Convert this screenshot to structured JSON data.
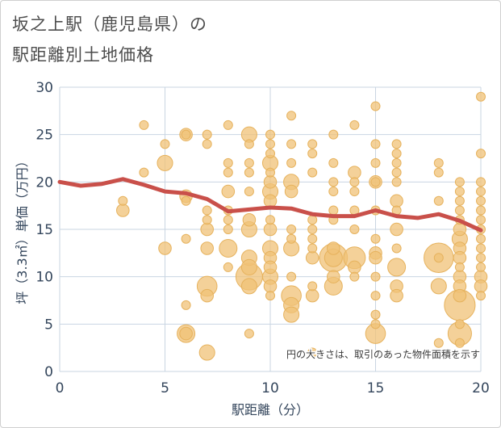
{
  "title_line1": "坂之上駅（鹿児島県）の",
  "title_line2": "駅距離別土地価格",
  "chart_data": {
    "type": "scatter",
    "xlabel": "駅距離（分）",
    "ylabel": "坪（3.3㎡）単価（万円）",
    "xlim": [
      0,
      20
    ],
    "ylim": [
      0,
      30
    ],
    "xticks": [
      0,
      5,
      10,
      15,
      20
    ],
    "yticks": [
      0,
      5,
      10,
      15,
      20,
      25,
      30
    ],
    "grid": true,
    "annotation": "円の大きさは、取引のあった物件面積を示す",
    "colors": {
      "bubble_fill": "#f0c277",
      "bubble_stroke": "#e6b25d",
      "trend_line": "#c9504a",
      "grid": "#c9d5e2",
      "axis_text": "#34465c"
    },
    "bubbles": [
      {
        "x": 3,
        "y": 17,
        "s": 2
      },
      {
        "x": 3,
        "y": 18,
        "s": 1
      },
      {
        "x": 4,
        "y": 26,
        "s": 1
      },
      {
        "x": 4,
        "y": 21,
        "s": 1
      },
      {
        "x": 5,
        "y": 24,
        "s": 1
      },
      {
        "x": 5,
        "y": 22,
        "s": 3
      },
      {
        "x": 5,
        "y": 13,
        "s": 2
      },
      {
        "x": 6,
        "y": 25,
        "s": 2
      },
      {
        "x": 6,
        "y": 25,
        "s": 1
      },
      {
        "x": 6,
        "y": 18.5,
        "s": 2
      },
      {
        "x": 6,
        "y": 18,
        "s": 1
      },
      {
        "x": 6,
        "y": 14,
        "s": 1
      },
      {
        "x": 6,
        "y": 7,
        "s": 1
      },
      {
        "x": 6,
        "y": 4,
        "s": 4
      },
      {
        "x": 6,
        "y": 4,
        "s": 2
      },
      {
        "x": 7,
        "y": 25,
        "s": 1
      },
      {
        "x": 7,
        "y": 24,
        "s": 1
      },
      {
        "x": 7,
        "y": 17,
        "s": 1
      },
      {
        "x": 7,
        "y": 16,
        "s": 1
      },
      {
        "x": 7,
        "y": 15,
        "s": 2
      },
      {
        "x": 7,
        "y": 13,
        "s": 2
      },
      {
        "x": 7,
        "y": 9,
        "s": 5
      },
      {
        "x": 7,
        "y": 8,
        "s": 2
      },
      {
        "x": 7,
        "y": 2,
        "s": 3
      },
      {
        "x": 8,
        "y": 26,
        "s": 1
      },
      {
        "x": 8,
        "y": 22,
        "s": 1
      },
      {
        "x": 8,
        "y": 21,
        "s": 1
      },
      {
        "x": 8,
        "y": 19,
        "s": 2
      },
      {
        "x": 8,
        "y": 17,
        "s": 1
      },
      {
        "x": 8,
        "y": 16,
        "s": 1
      },
      {
        "x": 8,
        "y": 15,
        "s": 1
      },
      {
        "x": 8,
        "y": 13,
        "s": 4
      },
      {
        "x": 8,
        "y": 11,
        "s": 1
      },
      {
        "x": 9,
        "y": 25,
        "s": 3
      },
      {
        "x": 9,
        "y": 24,
        "s": 1
      },
      {
        "x": 9,
        "y": 22,
        "s": 1
      },
      {
        "x": 9,
        "y": 21,
        "s": 1
      },
      {
        "x": 9,
        "y": 19,
        "s": 1
      },
      {
        "x": 9,
        "y": 16,
        "s": 2
      },
      {
        "x": 9,
        "y": 15,
        "s": 3
      },
      {
        "x": 9,
        "y": 12,
        "s": 3
      },
      {
        "x": 9,
        "y": 11,
        "s": 3
      },
      {
        "x": 9,
        "y": 10,
        "s": 9
      },
      {
        "x": 9,
        "y": 9,
        "s": 3
      },
      {
        "x": 9,
        "y": 4,
        "s": 1
      },
      {
        "x": 10,
        "y": 25,
        "s": 1
      },
      {
        "x": 10,
        "y": 24,
        "s": 1
      },
      {
        "x": 10,
        "y": 23,
        "s": 1
      },
      {
        "x": 10,
        "y": 22,
        "s": 3
      },
      {
        "x": 10,
        "y": 21,
        "s": 1
      },
      {
        "x": 10,
        "y": 20,
        "s": 2
      },
      {
        "x": 10,
        "y": 19,
        "s": 3
      },
      {
        "x": 10,
        "y": 18,
        "s": 2
      },
      {
        "x": 10,
        "y": 16,
        "s": 1
      },
      {
        "x": 10,
        "y": 15,
        "s": 2
      },
      {
        "x": 10,
        "y": 13,
        "s": 3
      },
      {
        "x": 10,
        "y": 12,
        "s": 2
      },
      {
        "x": 10,
        "y": 11,
        "s": 2
      },
      {
        "x": 10,
        "y": 10,
        "s": 3
      },
      {
        "x": 10,
        "y": 9,
        "s": 2
      },
      {
        "x": 10,
        "y": 8,
        "s": 1
      },
      {
        "x": 11,
        "y": 27,
        "s": 1
      },
      {
        "x": 11,
        "y": 24,
        "s": 1
      },
      {
        "x": 11,
        "y": 22,
        "s": 1
      },
      {
        "x": 11,
        "y": 20,
        "s": 3
      },
      {
        "x": 11,
        "y": 19,
        "s": 2
      },
      {
        "x": 11,
        "y": 15,
        "s": 1
      },
      {
        "x": 11,
        "y": 14,
        "s": 1
      },
      {
        "x": 11,
        "y": 13,
        "s": 3
      },
      {
        "x": 11,
        "y": 10,
        "s": 1
      },
      {
        "x": 11,
        "y": 8,
        "s": 5
      },
      {
        "x": 11,
        "y": 7,
        "s": 3
      },
      {
        "x": 11,
        "y": 6,
        "s": 3
      },
      {
        "x": 12,
        "y": 24,
        "s": 1
      },
      {
        "x": 12,
        "y": 23,
        "s": 1
      },
      {
        "x": 12,
        "y": 21,
        "s": 1
      },
      {
        "x": 12,
        "y": 16,
        "s": 1
      },
      {
        "x": 12,
        "y": 15,
        "s": 1
      },
      {
        "x": 12,
        "y": 14,
        "s": 1
      },
      {
        "x": 12,
        "y": 13,
        "s": 1
      },
      {
        "x": 12,
        "y": 12,
        "s": 2
      },
      {
        "x": 12,
        "y": 9,
        "s": 1
      },
      {
        "x": 12,
        "y": 8,
        "s": 2
      },
      {
        "x": 12,
        "y": 2,
        "s": 1
      },
      {
        "x": 13,
        "y": 25,
        "s": 1
      },
      {
        "x": 13,
        "y": 22,
        "s": 1
      },
      {
        "x": 13,
        "y": 20,
        "s": 1
      },
      {
        "x": 13,
        "y": 19,
        "s": 1
      },
      {
        "x": 13,
        "y": 17,
        "s": 1
      },
      {
        "x": 13,
        "y": 16,
        "s": 1
      },
      {
        "x": 13,
        "y": 13,
        "s": 2
      },
      {
        "x": 13,
        "y": 12,
        "s": 10
      },
      {
        "x": 13,
        "y": 12,
        "s": 4
      },
      {
        "x": 13,
        "y": 10,
        "s": 2
      },
      {
        "x": 13,
        "y": 9,
        "s": 4
      },
      {
        "x": 14,
        "y": 26,
        "s": 1
      },
      {
        "x": 14,
        "y": 21,
        "s": 2
      },
      {
        "x": 14,
        "y": 20,
        "s": 1
      },
      {
        "x": 14,
        "y": 19,
        "s": 1
      },
      {
        "x": 14,
        "y": 17,
        "s": 1
      },
      {
        "x": 14,
        "y": 15,
        "s": 1
      },
      {
        "x": 14,
        "y": 12,
        "s": 6
      },
      {
        "x": 14,
        "y": 11,
        "s": 2
      },
      {
        "x": 14,
        "y": 10,
        "s": 1
      },
      {
        "x": 15,
        "y": 28,
        "s": 1
      },
      {
        "x": 15,
        "y": 24,
        "s": 1
      },
      {
        "x": 15,
        "y": 22,
        "s": 1
      },
      {
        "x": 15,
        "y": 20,
        "s": 2
      },
      {
        "x": 15,
        "y": 20,
        "s": 1
      },
      {
        "x": 15,
        "y": 17,
        "s": 1
      },
      {
        "x": 15,
        "y": 14,
        "s": 1
      },
      {
        "x": 15,
        "y": 12.5,
        "s": 2
      },
      {
        "x": 15,
        "y": 12,
        "s": 2
      },
      {
        "x": 15,
        "y": 10,
        "s": 1
      },
      {
        "x": 15,
        "y": 8,
        "s": 1
      },
      {
        "x": 15,
        "y": 6,
        "s": 1
      },
      {
        "x": 15,
        "y": 5,
        "s": 1
      },
      {
        "x": 15,
        "y": 4,
        "s": 5
      },
      {
        "x": 16,
        "y": 24,
        "s": 1
      },
      {
        "x": 16,
        "y": 23,
        "s": 1
      },
      {
        "x": 16,
        "y": 22,
        "s": 1
      },
      {
        "x": 16,
        "y": 21,
        "s": 1
      },
      {
        "x": 16,
        "y": 20,
        "s": 1
      },
      {
        "x": 16,
        "y": 18,
        "s": 2
      },
      {
        "x": 16,
        "y": 17,
        "s": 1
      },
      {
        "x": 16,
        "y": 15,
        "s": 2
      },
      {
        "x": 16,
        "y": 13,
        "s": 1
      },
      {
        "x": 16,
        "y": 11,
        "s": 4
      },
      {
        "x": 16,
        "y": 9,
        "s": 2
      },
      {
        "x": 16,
        "y": 8,
        "s": 2
      },
      {
        "x": 18,
        "y": 22,
        "s": 1
      },
      {
        "x": 18,
        "y": 21,
        "s": 1
      },
      {
        "x": 18,
        "y": 18,
        "s": 1
      },
      {
        "x": 18,
        "y": 12,
        "s": 11
      },
      {
        "x": 18,
        "y": 12,
        "s": 1
      },
      {
        "x": 18,
        "y": 9,
        "s": 3
      },
      {
        "x": 18,
        "y": 3,
        "s": 1
      },
      {
        "x": 19,
        "y": 20,
        "s": 1
      },
      {
        "x": 19,
        "y": 19,
        "s": 1
      },
      {
        "x": 19,
        "y": 18,
        "s": 1
      },
      {
        "x": 19,
        "y": 17,
        "s": 1
      },
      {
        "x": 19,
        "y": 16,
        "s": 1
      },
      {
        "x": 19,
        "y": 15,
        "s": 2
      },
      {
        "x": 19,
        "y": 14,
        "s": 3
      },
      {
        "x": 19,
        "y": 13,
        "s": 2
      },
      {
        "x": 19,
        "y": 12,
        "s": 2
      },
      {
        "x": 19,
        "y": 11,
        "s": 1
      },
      {
        "x": 19,
        "y": 10,
        "s": 2
      },
      {
        "x": 19,
        "y": 9,
        "s": 2
      },
      {
        "x": 19,
        "y": 8,
        "s": 2
      },
      {
        "x": 19,
        "y": 7,
        "s": 12
      },
      {
        "x": 19,
        "y": 5,
        "s": 1
      },
      {
        "x": 19,
        "y": 4,
        "s": 7
      },
      {
        "x": 19,
        "y": 3,
        "s": 1
      },
      {
        "x": 20,
        "y": 29,
        "s": 1
      },
      {
        "x": 20,
        "y": 23,
        "s": 1
      },
      {
        "x": 20,
        "y": 20,
        "s": 1
      },
      {
        "x": 20,
        "y": 19,
        "s": 1
      },
      {
        "x": 20,
        "y": 18,
        "s": 1
      },
      {
        "x": 20,
        "y": 17,
        "s": 1
      },
      {
        "x": 20,
        "y": 16,
        "s": 1
      },
      {
        "x": 20,
        "y": 15,
        "s": 1
      },
      {
        "x": 20,
        "y": 14,
        "s": 1
      },
      {
        "x": 20,
        "y": 13,
        "s": 1
      },
      {
        "x": 20,
        "y": 12,
        "s": 1
      },
      {
        "x": 20,
        "y": 11,
        "s": 1
      },
      {
        "x": 20,
        "y": 10,
        "s": 2
      },
      {
        "x": 20,
        "y": 9,
        "s": 2
      },
      {
        "x": 20,
        "y": 8,
        "s": 1
      }
    ],
    "trend": {
      "x": [
        0,
        1,
        2,
        3,
        4,
        5,
        6,
        7,
        8,
        9,
        10,
        11,
        12,
        13,
        14,
        15,
        16,
        17,
        18,
        19,
        20
      ],
      "y": [
        20.0,
        19.6,
        19.8,
        20.3,
        19.7,
        19.0,
        18.8,
        18.2,
        16.9,
        17.1,
        17.3,
        17.2,
        16.6,
        16.4,
        16.4,
        17.0,
        16.4,
        16.2,
        16.6,
        15.9,
        14.9
      ]
    }
  }
}
